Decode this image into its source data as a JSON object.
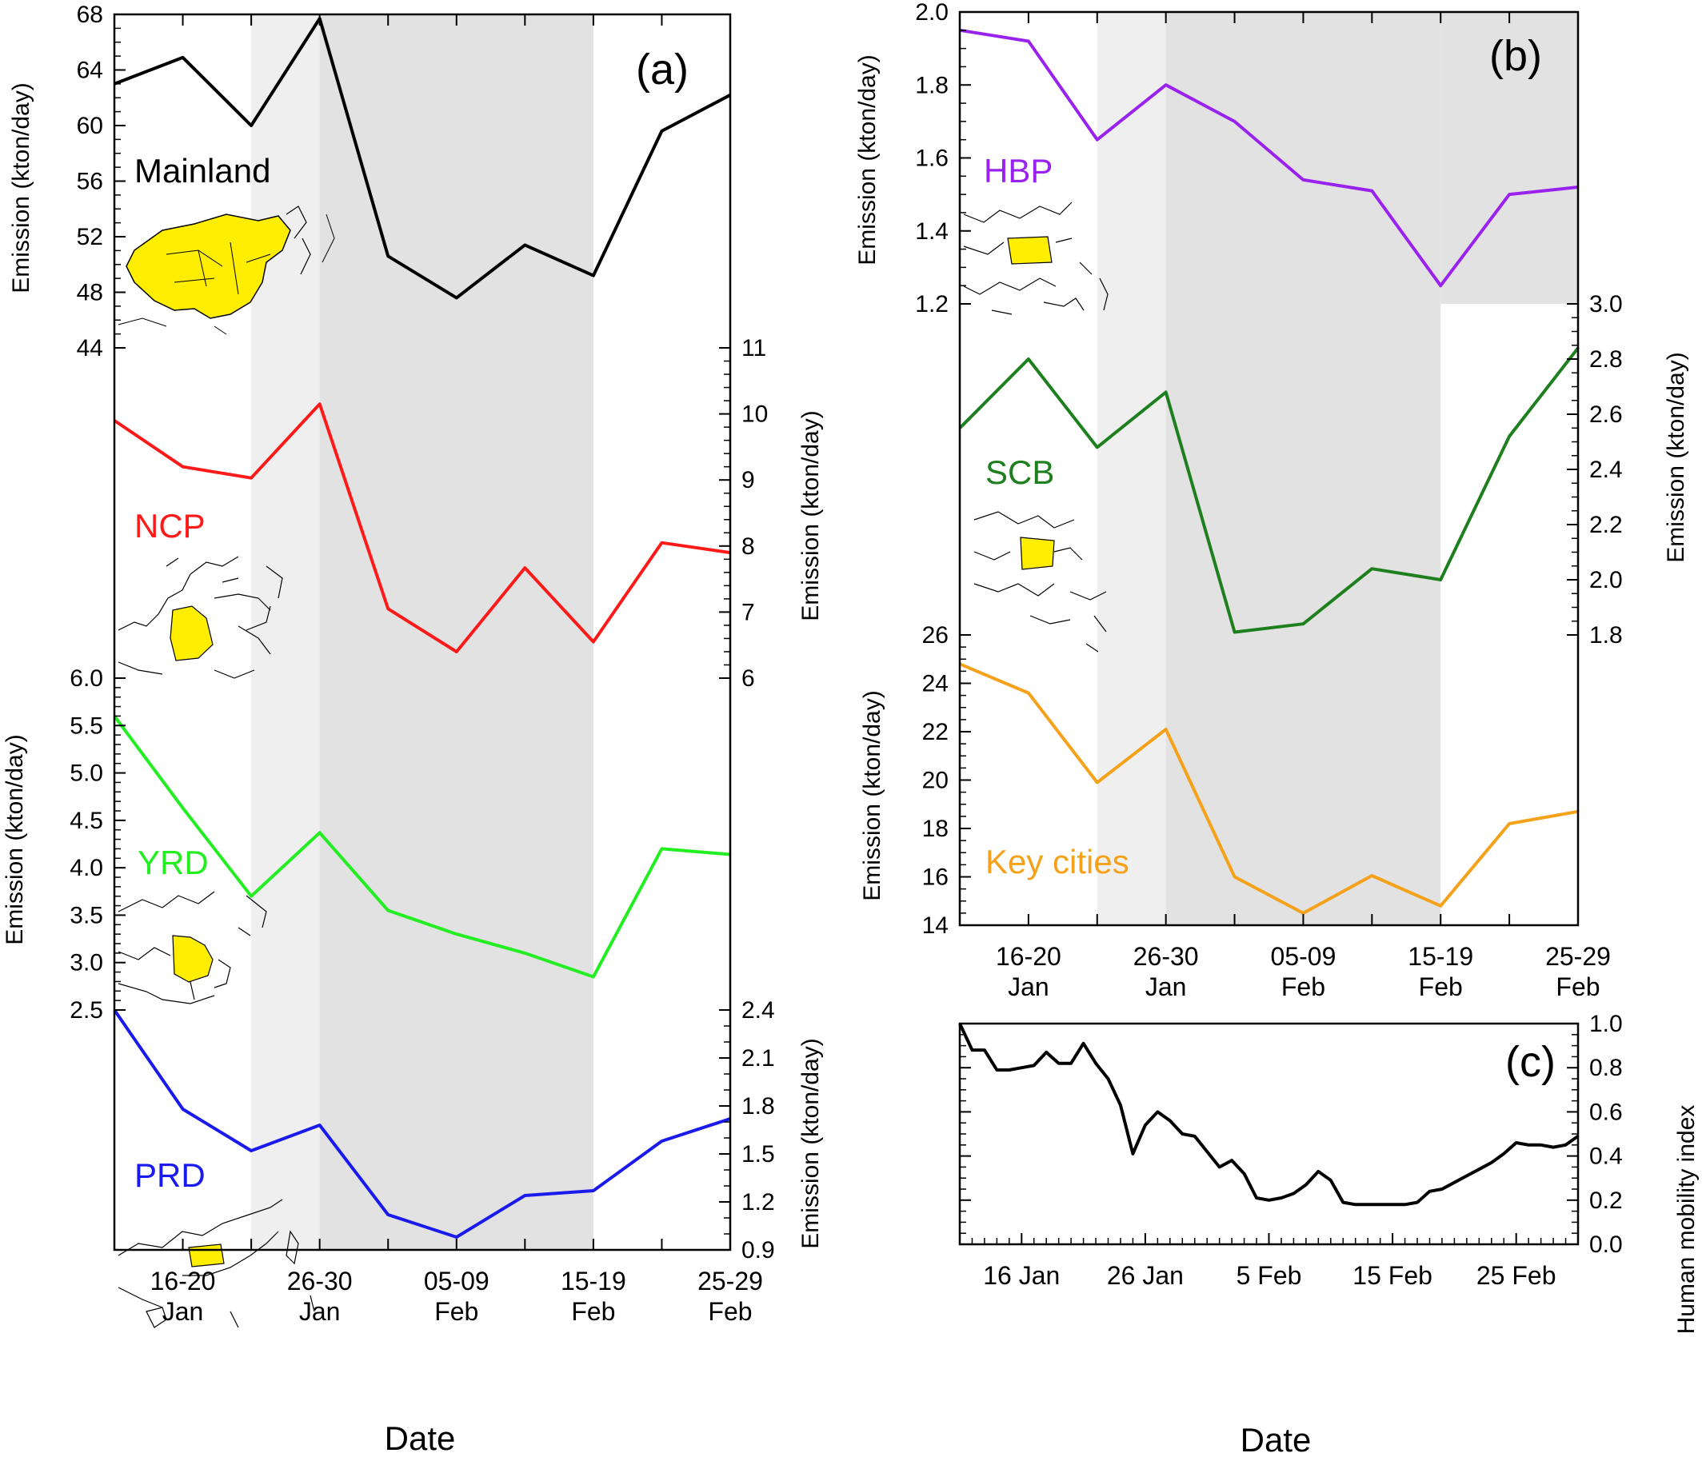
{
  "xlabels": {
    "a": "Date",
    "c": "Date"
  },
  "colors": {
    "mainland": "#000000",
    "ncp": "#ff1a1a",
    "yrd": "#22ee22",
    "prd": "#1a1aee",
    "hbp": "#9922ee",
    "scb": "#1e7f1e",
    "key": "#f5a21a",
    "shade_light": "#efefef",
    "shade_dark": "#e2e2e2",
    "map_fill": "#ffee00"
  },
  "icons": [
    "map-mainland-icon",
    "map-ncp-icon",
    "map-yrd-icon",
    "map-prd-icon",
    "map-hbp-icon",
    "map-scb-icon"
  ],
  "chart_data": [
    {
      "panel": "(a)",
      "type": "line",
      "x": [
        "16-20 Jan",
        "21-25 Jan",
        "26-30 Jan",
        "31 Jan-04 Feb",
        "05-09 Feb",
        "10-14 Feb",
        "15-19 Feb",
        "20-24 Feb",
        "25-29 Feb"
      ],
      "x_tick_labels": [
        [
          "16-20",
          "Jan"
        ],
        [
          "26-30",
          "Jan"
        ],
        [
          "05-09",
          "Feb"
        ],
        [
          "15-19",
          "Feb"
        ],
        [
          "25-29",
          "Feb"
        ]
      ],
      "xlabel": "Date",
      "shading": "light shade 21-25 Jan to 26-30 Jan; dark shade 26-30 Jan to 15-19 Feb",
      "series": [
        {
          "name": "Mainland",
          "ylabel": "Emission (kton/day)",
          "axis": "left",
          "ylim": [
            44,
            68
          ],
          "ticks": [
            "44",
            "48",
            "52",
            "56",
            "60",
            "64",
            "68"
          ],
          "x": [
            "11-15 Jan",
            "16-20 Jan",
            "21-25 Jan",
            "26-30 Jan",
            "31 Jan-04 Feb",
            "05-09 Feb",
            "10-14 Feb",
            "15-19 Feb",
            "20-24 Feb",
            "25-29 Feb"
          ],
          "values": [
            63.0,
            64.9,
            60.0,
            67.7,
            50.6,
            47.6,
            51.4,
            49.2,
            59.6,
            62.2
          ]
        },
        {
          "name": "NCP",
          "ylabel": "Emission (kton/day)",
          "axis": "right",
          "ylim": [
            6,
            11
          ],
          "ticks": [
            "6",
            "7",
            "8",
            "9",
            "10",
            "11"
          ],
          "x": [
            "11-15 Jan",
            "16-20 Jan",
            "21-25 Jan",
            "26-30 Jan",
            "31 Jan-04 Feb",
            "05-09 Feb",
            "10-14 Feb",
            "15-19 Feb",
            "20-24 Feb",
            "25-29 Feb"
          ],
          "values": [
            9.9,
            9.2,
            9.03,
            10.15,
            7.05,
            6.4,
            7.67,
            6.55,
            8.05,
            7.9
          ]
        },
        {
          "name": "YRD",
          "ylabel": "Emission (kton/day)",
          "axis": "left",
          "ylim": [
            2.5,
            6.0
          ],
          "ticks": [
            "2.5",
            "3.0",
            "3.5",
            "4.0",
            "4.5",
            "5.0",
            "5.5",
            "6.0"
          ],
          "x": [
            "11-15 Jan",
            "16-20 Jan",
            "21-25 Jan",
            "26-30 Jan",
            "31 Jan-04 Feb",
            "05-09 Feb",
            "10-14 Feb",
            "15-19 Feb",
            "20-24 Feb",
            "25-29 Feb"
          ],
          "values": [
            5.6,
            4.63,
            3.7,
            4.37,
            3.55,
            3.3,
            3.1,
            2.85,
            4.2,
            4.14
          ]
        },
        {
          "name": "PRD",
          "ylabel": "Emission (kton/day)",
          "axis": "right",
          "ylim": [
            0.9,
            2.4
          ],
          "ticks": [
            "0.9",
            "1.2",
            "1.5",
            "1.8",
            "2.1",
            "2.4"
          ],
          "x": [
            "11-15 Jan",
            "16-20 Jan",
            "21-25 Jan",
            "26-30 Jan",
            "31 Jan-04 Feb",
            "05-09 Feb",
            "10-14 Feb",
            "15-19 Feb",
            "20-24 Feb",
            "25-29 Feb"
          ],
          "values": [
            2.4,
            1.78,
            1.52,
            1.68,
            1.12,
            0.98,
            1.24,
            1.27,
            1.58,
            1.72
          ]
        }
      ]
    },
    {
      "panel": "(b)",
      "type": "line",
      "x_tick_labels": [
        [
          "16-20",
          "Jan"
        ],
        [
          "26-30",
          "Jan"
        ],
        [
          "05-09",
          "Feb"
        ],
        [
          "15-19",
          "Feb"
        ],
        [
          "25-29",
          "Feb"
        ]
      ],
      "shading": "light shade 21-25 Jan to 26-30 Jan; dark shade 26-30 Jan to 15-19 Feb",
      "series": [
        {
          "name": "HBP",
          "ylabel": "Emission (kton/day)",
          "axis": "left",
          "ylim": [
            1.2,
            2.0
          ],
          "ticks": [
            "1.2",
            "1.4",
            "1.6",
            "1.8",
            "2.0"
          ],
          "x": [
            "11-15 Jan",
            "16-20 Jan",
            "21-25 Jan",
            "26-30 Jan",
            "31 Jan-04 Feb",
            "05-09 Feb",
            "10-14 Feb",
            "15-19 Feb",
            "20-24 Feb",
            "25-29 Feb"
          ],
          "values": [
            1.95,
            1.92,
            1.65,
            1.8,
            1.7,
            1.54,
            1.51,
            1.25,
            1.5,
            1.52
          ]
        },
        {
          "name": "SCB",
          "ylabel": "Emission (kton/day)",
          "axis": "right",
          "ylim": [
            1.8,
            3.0
          ],
          "ticks": [
            "1.8",
            "2.0",
            "2.2",
            "2.4",
            "2.6",
            "2.8",
            "3.0"
          ],
          "x": [
            "11-15 Jan",
            "16-20 Jan",
            "21-25 Jan",
            "26-30 Jan",
            "31 Jan-04 Feb",
            "05-09 Feb",
            "10-14 Feb",
            "15-19 Feb",
            "20-24 Feb",
            "25-29 Feb"
          ],
          "values": [
            2.55,
            2.8,
            2.48,
            2.68,
            1.81,
            1.84,
            2.04,
            2.0,
            2.52,
            2.84
          ]
        },
        {
          "name": "Key cities",
          "ylabel": "Emission (kton/day)",
          "axis": "left",
          "ylim": [
            14,
            26
          ],
          "ticks": [
            "14",
            "16",
            "18",
            "20",
            "22",
            "24",
            "26"
          ],
          "x": [
            "11-15 Jan",
            "16-20 Jan",
            "21-25 Jan",
            "26-30 Jan",
            "31 Jan-04 Feb",
            "05-09 Feb",
            "10-14 Feb",
            "15-19 Feb",
            "20-24 Feb",
            "25-29 Feb"
          ],
          "values": [
            24.8,
            23.6,
            19.9,
            22.1,
            16.0,
            14.5,
            16.05,
            14.8,
            18.2,
            18.7
          ]
        }
      ]
    },
    {
      "panel": "(c)",
      "type": "line",
      "xlabel": "Date",
      "ylabel": "Human mobility index",
      "ylim": [
        0.0,
        1.0
      ],
      "ticks": [
        "0.0",
        "0.2",
        "0.4",
        "0.6",
        "0.8",
        "1.0"
      ],
      "x_tick_labels": [
        "16 Jan",
        "26 Jan",
        "5 Feb",
        "15 Feb",
        "25 Feb"
      ],
      "x_day_range": [
        "11 Jan",
        "1 Mar"
      ],
      "series": [
        {
          "name": "",
          "values": [
            1.0,
            0.88,
            0.88,
            0.79,
            0.79,
            0.8,
            0.81,
            0.87,
            0.82,
            0.82,
            0.91,
            0.82,
            0.75,
            0.63,
            0.41,
            0.54,
            0.6,
            0.56,
            0.5,
            0.49,
            0.42,
            0.35,
            0.38,
            0.32,
            0.21,
            0.2,
            0.21,
            0.23,
            0.27,
            0.33,
            0.29,
            0.19,
            0.18,
            0.18,
            0.18,
            0.18,
            0.18,
            0.19,
            0.24,
            0.25,
            0.28,
            0.31,
            0.34,
            0.37,
            0.41,
            0.46,
            0.45,
            0.45,
            0.44,
            0.45,
            0.49
          ]
        }
      ]
    }
  ],
  "panel_a": {
    "label": "(a)",
    "names": {
      "mainland": "Mainland",
      "ncp": "NCP",
      "yrd": "YRD",
      "prd": "PRD"
    },
    "ylabel_mainland": "Emission (kton/day)",
    "ylabel_ncp": "Emission (kton/day)",
    "ylabel_yrd": "Emission (kton/day)",
    "ylabel_prd": "Emission (kton/day)"
  },
  "panel_b": {
    "label": "(b)",
    "names": {
      "hbp": "HBP",
      "scb": "SCB",
      "key": "Key cities"
    },
    "ylabel_hbp": "Emission (kton/day)",
    "ylabel_scb": "Emission (kton/day)",
    "ylabel_key": "Emission (kton/day)"
  },
  "panel_c": {
    "label": "(c)",
    "ylabel": "Human mobility index"
  }
}
